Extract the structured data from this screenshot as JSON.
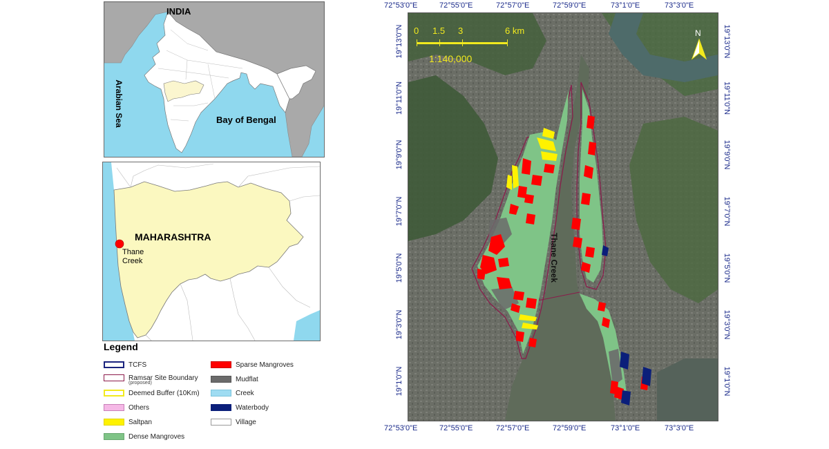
{
  "india_map": {
    "country_label": "INDIA",
    "sea_west": "Arabian Sea",
    "sea_east": "Bay of Bengal",
    "colors": {
      "sea": "#8fd8ee",
      "land": "#ffffff",
      "neighbors": "#a9a9a9",
      "highlight_state": "#fbf6cf"
    }
  },
  "maharashtra_map": {
    "state_label": "MAHARASHTRA",
    "site_label_line1": "Thane",
    "site_label_line2": "Creek",
    "colors": {
      "state": "#fbf8c0",
      "sea": "#8fd8ee",
      "site_marker": "#ff0000"
    }
  },
  "legend": {
    "title": "Legend",
    "items_left": [
      {
        "label": "TCFS",
        "fill": "#ffffff",
        "border": "#1a237e"
      },
      {
        "label": "Ramsar Site Boundary",
        "sub": "(proposed)",
        "fill": "#ffffff",
        "border": "#8b1a4a"
      },
      {
        "label": "Deemed Buffer (10Km)",
        "fill": "#ffffff",
        "border": "#f2ea1e"
      },
      {
        "label": "Others",
        "fill": "#f5b8e6",
        "border": "#c77fb8"
      },
      {
        "label": "Saltpan",
        "fill": "#fff200",
        "border": "#e0d400"
      },
      {
        "label": "Dense Mangroves",
        "fill": "#7fc487",
        "border": "#6aa871"
      }
    ],
    "items_right": [
      {
        "label": "Sparse Mangroves",
        "fill": "#ff0000",
        "border": "#cc0000"
      },
      {
        "label": "Mudflat",
        "fill": "#6b6b6b",
        "border": "#555555"
      },
      {
        "label": "Creek",
        "fill": "#9fdcf2",
        "border": "#7cc4dc"
      },
      {
        "label": "Waterbody",
        "fill": "#0b1f7a",
        "border": "#0b1f7a"
      },
      {
        "label": "Village",
        "fill": "#ffffff",
        "border": "#999999"
      }
    ]
  },
  "main_map": {
    "scale": {
      "ticks": [
        "0",
        "1.5",
        "3",
        "6 km"
      ],
      "ratio": "1:140,000",
      "color": "#f2ea1e"
    },
    "north_label": "N",
    "creek_label": "Thane Creek",
    "longitude_labels": [
      "72°53'0\"E",
      "72°55'0\"E",
      "72°57'0\"E",
      "72°59'0\"E",
      "73°1'0\"E",
      "73°3'0\"E"
    ],
    "latitude_labels_left": [
      "19°13'0\"N",
      "19°11'0\"N",
      "19°9'0\"N",
      "19°7'0\"N",
      "19°5'0\"N",
      "19°3'0\"N",
      "19°1'0\"N"
    ],
    "latitude_labels_right": [
      "19°13'0\"N",
      "19°11'0\"N",
      "19°9'0\"N",
      "19°7'0\"N",
      "19°5'0\"N",
      "19°3'0\"N",
      "19°1'0\"N"
    ],
    "colors": {
      "dense": "#7fc487",
      "sparse": "#ff0000",
      "saltpan": "#fff200",
      "mudflat": "#6b6b6b",
      "boundary": "#8b1a4a",
      "water": "#5f6b5a",
      "waterbody": "#0b1f7a"
    }
  }
}
